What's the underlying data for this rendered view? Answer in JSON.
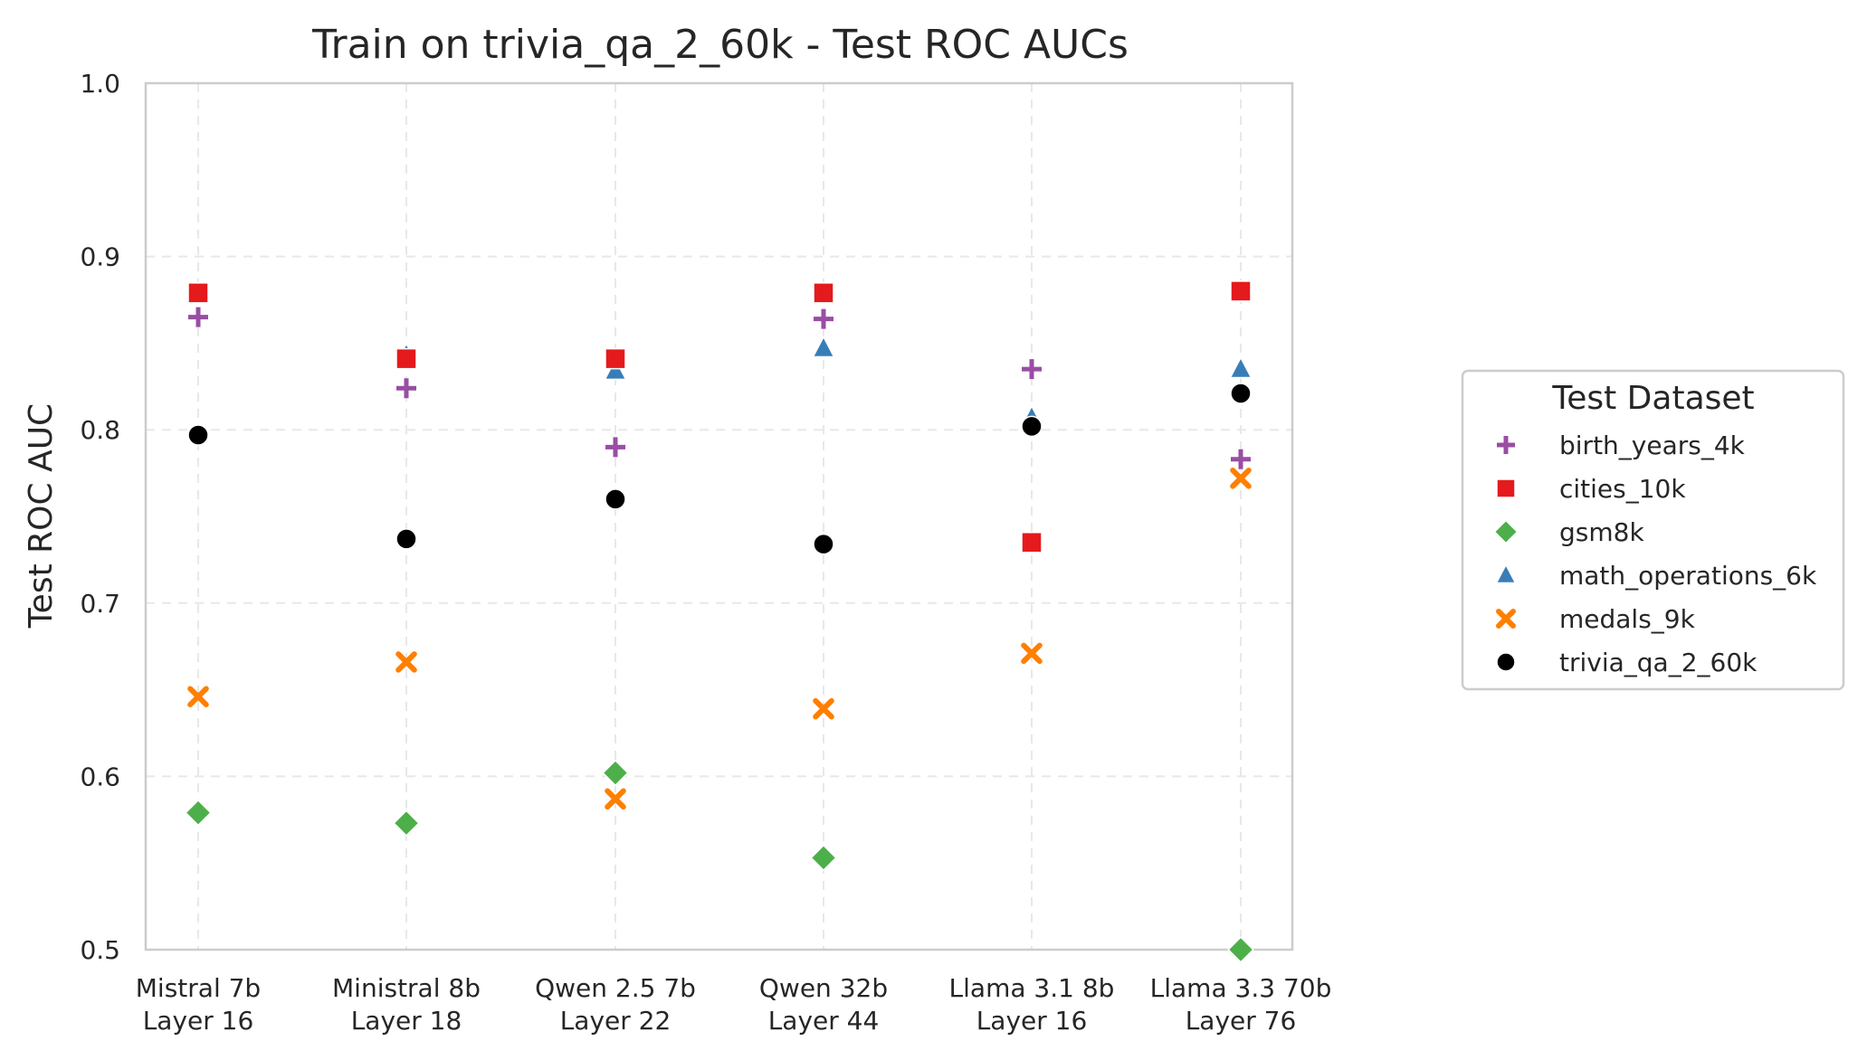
{
  "chart_data": {
    "type": "scatter",
    "title": "Train on trivia_qa_2_60k - Test ROC AUCs",
    "xlabel": "",
    "ylabel": "Test ROC AUC",
    "ylim": [
      0.5,
      1.0
    ],
    "yticks": [
      "0.5",
      "0.6",
      "0.7",
      "0.8",
      "0.9",
      "1.0"
    ],
    "categories": [
      [
        "Mistral 7b",
        "Layer 16"
      ],
      [
        "Ministral 8b",
        "Layer 18"
      ],
      [
        "Qwen 2.5 7b",
        "Layer 22"
      ],
      [
        "Qwen 32b",
        "Layer 44"
      ],
      [
        "Llama 3.1 8b",
        "Layer 16"
      ],
      [
        "Llama 3.3 70b",
        "Layer 76"
      ]
    ],
    "grid": true,
    "legend": {
      "title": "Test Dataset",
      "placement": "right"
    },
    "series": [
      {
        "name": "birth_years_4k",
        "marker": "plus",
        "color": "#984ea3",
        "values": [
          0.865,
          0.824,
          0.79,
          0.864,
          0.835,
          0.783
        ]
      },
      {
        "name": "cities_10k",
        "marker": "square",
        "color": "#e41a1c",
        "values": [
          0.879,
          0.841,
          0.841,
          0.879,
          0.735,
          0.88
        ]
      },
      {
        "name": "gsm8k",
        "marker": "diamond",
        "color": "#4daf4a",
        "values": [
          0.579,
          0.573,
          0.602,
          0.553,
          null,
          0.5
        ]
      },
      {
        "name": "math_operations_6k",
        "marker": "triangle",
        "color": "#377eb8",
        "values": [
          null,
          0.843,
          0.834,
          0.847,
          0.807,
          0.835
        ]
      },
      {
        "name": "medals_9k",
        "marker": "x",
        "color": "#ff7f00",
        "values": [
          0.646,
          0.666,
          0.587,
          0.639,
          0.671,
          0.772
        ]
      },
      {
        "name": "trivia_qa_2_60k",
        "marker": "circle",
        "color": "#000000",
        "values": [
          0.797,
          0.737,
          0.76,
          0.734,
          0.802,
          0.821
        ]
      }
    ]
  }
}
